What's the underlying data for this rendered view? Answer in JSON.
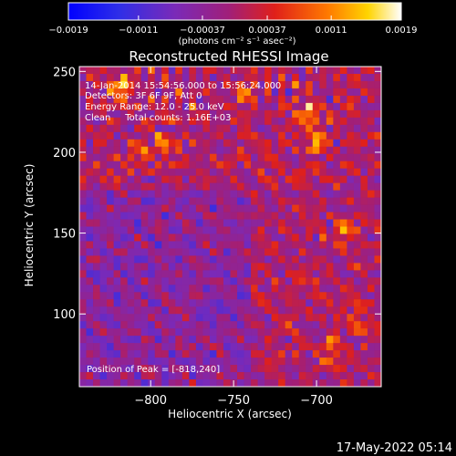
{
  "chart_data": {
    "type": "heatmap",
    "title": "Reconstructed RHESSI Image",
    "xlabel": "Heliocentric X (arcsec)",
    "ylabel": "Heliocentric Y (arcsec)",
    "xlim": [
      -843,
      -661
    ],
    "ylim": [
      55,
      253
    ],
    "x_ticks": [
      -800,
      -750,
      -700
    ],
    "x_tick_labels": [
      "−800",
      "−750",
      "−700"
    ],
    "y_ticks": [
      100,
      150,
      200,
      250
    ],
    "y_tick_labels": [
      "100",
      "150",
      "200",
      "250"
    ],
    "colorbar": {
      "range": [
        -0.0019,
        0.0019
      ],
      "ticks": [
        -0.0019,
        -0.0011,
        -0.00037,
        0.00037,
        0.0011,
        0.0019
      ],
      "tick_labels": [
        "−0.0019",
        "−0.0011",
        "−0.00037",
        "0.00037",
        "0.0011",
        "0.0019"
      ],
      "units_label": "(photons cm⁻² s⁻¹ asec⁻²)",
      "colormap": "rainbow-blue-purple-red-yellow-white"
    },
    "annotations": [
      "14-Jan-2014 15:54:56.000 to 15:56:24.000",
      "Detectors: 3F 6F 9F, Att 0",
      "Energy Range: 12.0 - 25.0 keV",
      "Clean     Total counts: 1.16E+03"
    ],
    "peak_label": "Position of Peak = [-818,240]",
    "peak": {
      "x": -818,
      "y": 240
    },
    "bright_spots": [
      {
        "x": -818,
        "y": 240,
        "v": 0.0019
      },
      {
        "x": -706,
        "y": 222,
        "v": 0.0017
      },
      {
        "x": -700,
        "y": 207,
        "v": 0.0016
      },
      {
        "x": -790,
        "y": 205,
        "v": 0.0014
      },
      {
        "x": -806,
        "y": 200,
        "v": 0.0012
      },
      {
        "x": -683,
        "y": 150,
        "v": 0.0013
      },
      {
        "x": -675,
        "y": 95,
        "v": 0.0013
      },
      {
        "x": -693,
        "y": 78,
        "v": 0.0011
      },
      {
        "x": -742,
        "y": 238,
        "v": 0.0012
      }
    ],
    "footer_date": "17-May-2022 05:14"
  },
  "colors": {
    "background": "#000000",
    "text": "#ffffff",
    "map_base": "#6a1fa0"
  }
}
